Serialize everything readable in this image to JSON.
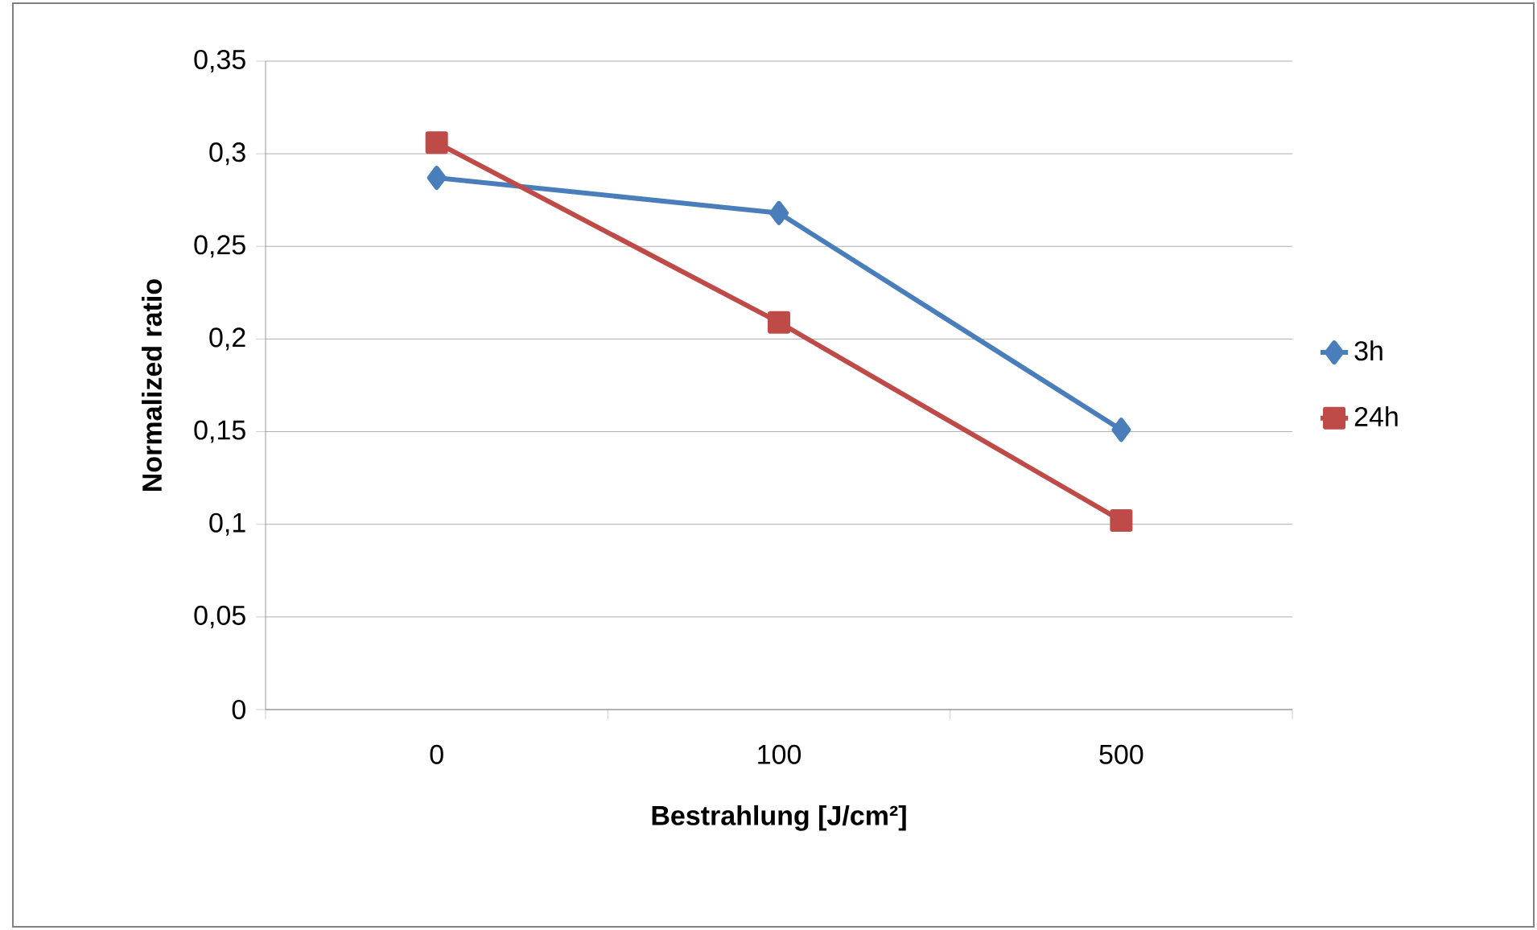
{
  "chart_data": {
    "type": "line",
    "xlabel": "Bestrahlung [J/cm²]",
    "ylabel": "Normalized ratio",
    "categories": [
      "0",
      "100",
      "500"
    ],
    "series": [
      {
        "name": "3h",
        "color": "#4a7ebb",
        "marker": "diamond",
        "values": [
          0.287,
          0.268,
          0.151
        ]
      },
      {
        "name": "24h",
        "color": "#be4b48",
        "marker": "square",
        "values": [
          0.306,
          0.209,
          0.102
        ]
      }
    ],
    "ylim": [
      0,
      0.35
    ],
    "yticks": [
      {
        "value": 0,
        "label": "0"
      },
      {
        "value": 0.05,
        "label": "0,05"
      },
      {
        "value": 0.1,
        "label": "0,1"
      },
      {
        "value": 0.15,
        "label": "0,15"
      },
      {
        "value": 0.2,
        "label": "0,2"
      },
      {
        "value": 0.25,
        "label": "0,25"
      },
      {
        "value": 0.3,
        "label": "0,3"
      },
      {
        "value": 0.35,
        "label": "0,35"
      }
    ],
    "grid": "y",
    "legend": "right",
    "line_style": "solid"
  }
}
